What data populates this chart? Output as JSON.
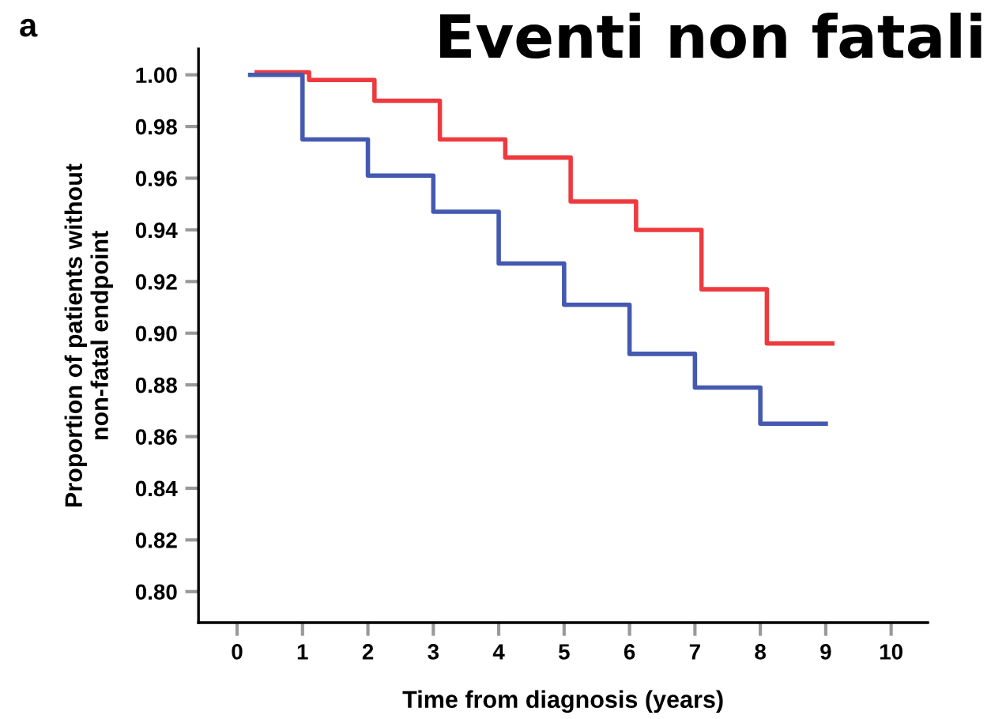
{
  "chart_data": {
    "type": "step",
    "title": "Eventi non fatali",
    "annotations": [
      "a"
    ],
    "xlabel": "Time from diagnosis (years)",
    "ylabel": "Proportion of patients without\nnon-fatal endpoint",
    "series": [
      {
        "color": "#ee3a3f",
        "x": [
          0.3,
          1.1,
          2.1,
          3.1,
          4.1,
          5.1,
          6.1,
          7.1,
          8.1,
          9.1
        ],
        "values": [
          1.001,
          0.998,
          0.99,
          0.975,
          0.968,
          0.951,
          0.94,
          0.917,
          0.896,
          0.896
        ]
      },
      {
        "color": "#4459b0",
        "x": [
          0.2,
          1,
          2,
          3,
          4,
          5,
          6,
          7,
          8,
          9
        ],
        "values": [
          1.0,
          0.975,
          0.961,
          0.947,
          0.927,
          0.911,
          0.892,
          0.879,
          0.865,
          0.865
        ]
      }
    ],
    "xlim": [
      -0.59,
      10.56
    ],
    "ylim": [
      0.788,
      1.01
    ],
    "xticks": [
      0,
      1,
      2,
      3,
      4,
      5,
      6,
      7,
      8,
      9,
      10
    ],
    "yticks": [
      {
        "value": 0.8,
        "label": "0.80"
      },
      {
        "value": 0.82,
        "label": "0.82"
      },
      {
        "value": 0.84,
        "label": "0.84"
      },
      {
        "value": 0.86,
        "label": "0.86"
      },
      {
        "value": 0.88,
        "label": "0.88"
      },
      {
        "value": 0.9,
        "label": "0.90"
      },
      {
        "value": 0.92,
        "label": "0.92"
      },
      {
        "value": 0.94,
        "label": "0.94"
      },
      {
        "value": 0.96,
        "label": "0.96"
      },
      {
        "value": 0.98,
        "label": "0.98"
      },
      {
        "value": 1.0,
        "label": "1.00"
      }
    ],
    "grid": false
  }
}
